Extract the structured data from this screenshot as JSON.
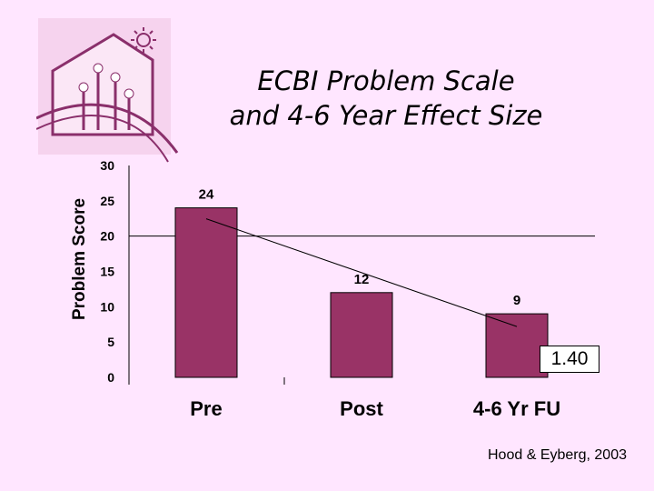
{
  "colors": {
    "background": "#ffe6ff",
    "bar": "#993366",
    "logo_fill": "#f2c6e6",
    "logo_stroke": "#8a2f6b"
  },
  "logo": {
    "icon": "house-with-sun-and-flowers-icon"
  },
  "chart_data": {
    "type": "bar",
    "title": [
      "ECBI Problem Scale",
      "and 4-6 Year Effect Size"
    ],
    "ylabel": "Problem Score",
    "xlabel": "",
    "categories": [
      "Pre",
      "Post",
      "4-6 Yr FU"
    ],
    "values": [
      24,
      12,
      9
    ],
    "data_labels": [
      "24",
      "12",
      "9"
    ],
    "ylim": [
      0,
      30
    ],
    "yticks": [
      0,
      5,
      10,
      15,
      20,
      25,
      30
    ],
    "reference_line": 20,
    "trend_line": true,
    "effect_size_label": "1.40",
    "grid": false,
    "legend": "none"
  },
  "source": "Hood & Eyberg, 2003"
}
